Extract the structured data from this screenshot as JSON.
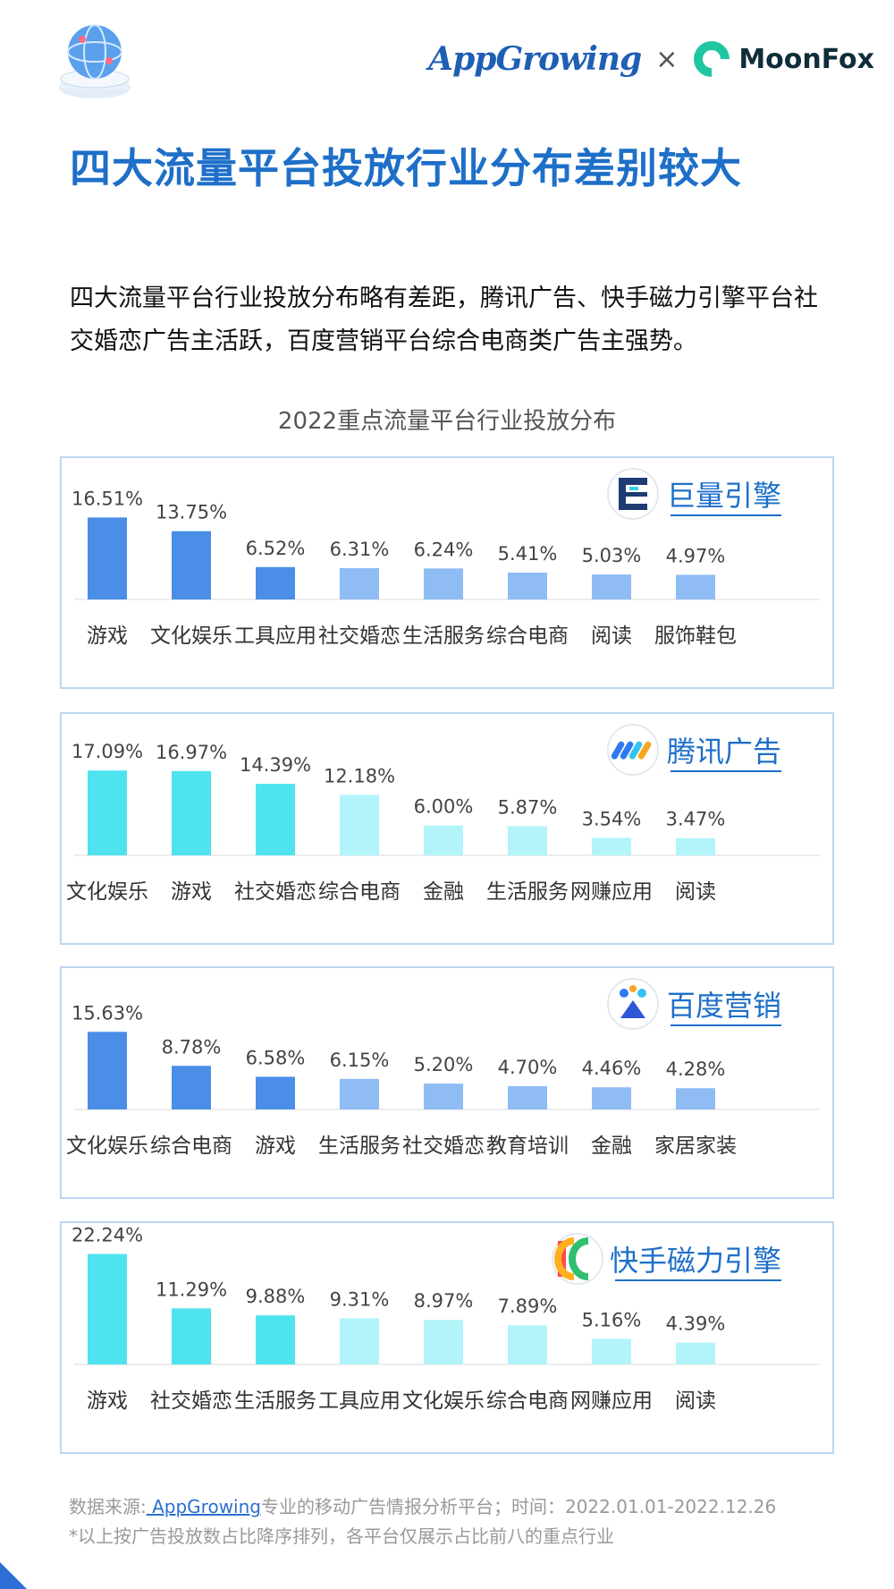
{
  "header": {
    "logo_appgrowing": "AppGrowing",
    "times": "×",
    "logo_moonfox": "MoonFox"
  },
  "title": "四大流量平台投放行业分布差别较大",
  "description": "四大流量平台行业投放分布略有差距，腾讯广告、快手磁力引擎平台社交婚恋广告主活跃，百度营销平台综合电商类广告主强势。",
  "chart_title": "2022重点流量平台行业投放分布",
  "footer": {
    "source_prefix": "数据来源:",
    "source_link": " AppGrowing",
    "source_suffix": "专业的移动广告情报分析平台；时间：2022.01.01-2022.12.26",
    "note": "*以上按广告投放数占比降序排列，各平台仅展示占比前八的重点行业"
  },
  "colors": {
    "title": "#1e6fc8",
    "blue_dark": "#4a8ee8",
    "blue_light": "#8fbcf5",
    "cyan_dark": "#4fe3ef",
    "cyan_light": "#b3f4fa",
    "panel_border": "#bcd6f2"
  },
  "chart_data": [
    {
      "type": "bar",
      "platform": "巨量引擎",
      "platform_icon": "juliang-engine-icon",
      "categories": [
        "游戏",
        "文化娱乐",
        "工具应用",
        "社交婚恋",
        "生活服务",
        "综合电商",
        "阅读",
        "服饰鞋包"
      ],
      "values": [
        16.51,
        13.75,
        6.52,
        6.31,
        6.24,
        5.41,
        5.03,
        4.97
      ],
      "labels": [
        "16.51%",
        "13.75%",
        "6.52%",
        "6.31%",
        "6.24%",
        "5.41%",
        "5.03%",
        "4.97%"
      ],
      "colors": [
        "#4a8ee8",
        "#4a8ee8",
        "#4a8ee8",
        "#8fbcf5",
        "#8fbcf5",
        "#8fbcf5",
        "#8fbcf5",
        "#8fbcf5"
      ]
    },
    {
      "type": "bar",
      "platform": "腾讯广告",
      "platform_icon": "tencent-ads-icon",
      "categories": [
        "文化娱乐",
        "游戏",
        "社交婚恋",
        "综合电商",
        "金融",
        "生活服务",
        "网赚应用",
        "阅读"
      ],
      "values": [
        17.09,
        16.97,
        14.39,
        12.18,
        6.0,
        5.87,
        3.54,
        3.47
      ],
      "labels": [
        "17.09%",
        "16.97%",
        "14.39%",
        "12.18%",
        "6.00%",
        "5.87%",
        "3.54%",
        "3.47%"
      ],
      "colors": [
        "#4fe3ef",
        "#4fe3ef",
        "#4fe3ef",
        "#b3f4fa",
        "#b3f4fa",
        "#b3f4fa",
        "#b3f4fa",
        "#b3f4fa"
      ]
    },
    {
      "type": "bar",
      "platform": "百度营销",
      "platform_icon": "baidu-marketing-icon",
      "categories": [
        "文化娱乐",
        "综合电商",
        "游戏",
        "生活服务",
        "社交婚恋",
        "教育培训",
        "金融",
        "家居家装"
      ],
      "values": [
        15.63,
        8.78,
        6.58,
        6.15,
        5.2,
        4.7,
        4.46,
        4.28
      ],
      "labels": [
        "15.63%",
        "8.78%",
        "6.58%",
        "6.15%",
        "5.20%",
        "4.70%",
        "4.46%",
        "4.28%"
      ],
      "colors": [
        "#4a8ee8",
        "#4a8ee8",
        "#4a8ee8",
        "#8fbcf5",
        "#8fbcf5",
        "#8fbcf5",
        "#8fbcf5",
        "#8fbcf5"
      ]
    },
    {
      "type": "bar",
      "platform": "快手磁力引擎",
      "platform_icon": "kuaishou-magnetic-icon",
      "categories": [
        "游戏",
        "社交婚恋",
        "生活服务",
        "工具应用",
        "文化娱乐",
        "综合电商",
        "网赚应用",
        "阅读"
      ],
      "values": [
        22.24,
        11.29,
        9.88,
        9.31,
        8.97,
        7.89,
        5.16,
        4.39
      ],
      "labels": [
        "22.24%",
        "11.29%",
        "9.88%",
        "9.31%",
        "8.97%",
        "7.89%",
        "5.16%",
        "4.39%"
      ],
      "colors": [
        "#4fe3ef",
        "#4fe3ef",
        "#4fe3ef",
        "#b3f4fa",
        "#b3f4fa",
        "#b3f4fa",
        "#b3f4fa",
        "#b3f4fa"
      ]
    }
  ]
}
